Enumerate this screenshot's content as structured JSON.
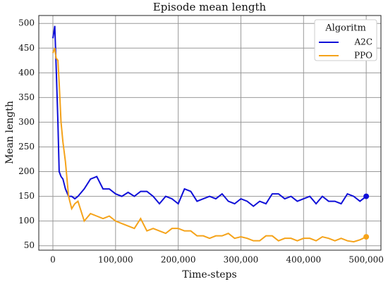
{
  "chart_data": {
    "type": "line",
    "title": "Episode mean length",
    "xlabel": "Time-steps",
    "ylabel": "Mean length",
    "legend_title": "Algoritm",
    "legend": "upper right",
    "grid": true,
    "x": [
      0,
      3000,
      5000,
      8000,
      10000,
      13000,
      16000,
      20000,
      25000,
      30000,
      35000,
      40000,
      50000,
      60000,
      70000,
      80000,
      90000,
      100000,
      110000,
      120000,
      130000,
      140000,
      150000,
      160000,
      170000,
      180000,
      190000,
      200000,
      210000,
      220000,
      230000,
      240000,
      250000,
      260000,
      270000,
      280000,
      290000,
      300000,
      310000,
      320000,
      330000,
      340000,
      350000,
      360000,
      370000,
      380000,
      390000,
      400000,
      410000,
      420000,
      430000,
      440000,
      450000,
      460000,
      470000,
      480000,
      490000,
      500000
    ],
    "series": [
      {
        "name": "A2C",
        "color": "#1010d8",
        "values": [
          470,
          495,
          420,
          300,
          200,
          190,
          185,
          165,
          150,
          150,
          145,
          150,
          165,
          185,
          190,
          165,
          165,
          155,
          150,
          158,
          150,
          160,
          160,
          150,
          135,
          150,
          145,
          135,
          165,
          160,
          140,
          145,
          150,
          145,
          155,
          140,
          135,
          145,
          140,
          130,
          140,
          135,
          155,
          155,
          145,
          150,
          140,
          145,
          150,
          135,
          150,
          140,
          140,
          135,
          155,
          150,
          140,
          150
        ]
      },
      {
        "name": "PPO",
        "color": "#f5a31a",
        "values": [
          440,
          450,
          430,
          425,
          380,
          300,
          260,
          220,
          150,
          125,
          135,
          140,
          100,
          115,
          110,
          105,
          110,
          100,
          95,
          90,
          85,
          105,
          80,
          85,
          80,
          75,
          85,
          85,
          80,
          80,
          70,
          70,
          65,
          70,
          70,
          75,
          65,
          68,
          65,
          60,
          60,
          70,
          70,
          60,
          65,
          65,
          60,
          65,
          65,
          60,
          68,
          65,
          60,
          65,
          60,
          58,
          62,
          68
        ]
      }
    ],
    "xlim": [
      -22500,
      523500
    ],
    "ylim": [
      41,
      516
    ],
    "xticks": [
      0,
      {
        "value": 100000,
        "label": "100,000"
      },
      {
        "value": 200000,
        "label": "200,000"
      },
      {
        "value": 300000,
        "label": "300,000"
      },
      {
        "value": 400000,
        "label": "400,000"
      },
      {
        "value": 500000,
        "label": "500,000"
      }
    ],
    "yticks": [
      50,
      100,
      150,
      200,
      250,
      300,
      350,
      400,
      450,
      500
    ]
  }
}
